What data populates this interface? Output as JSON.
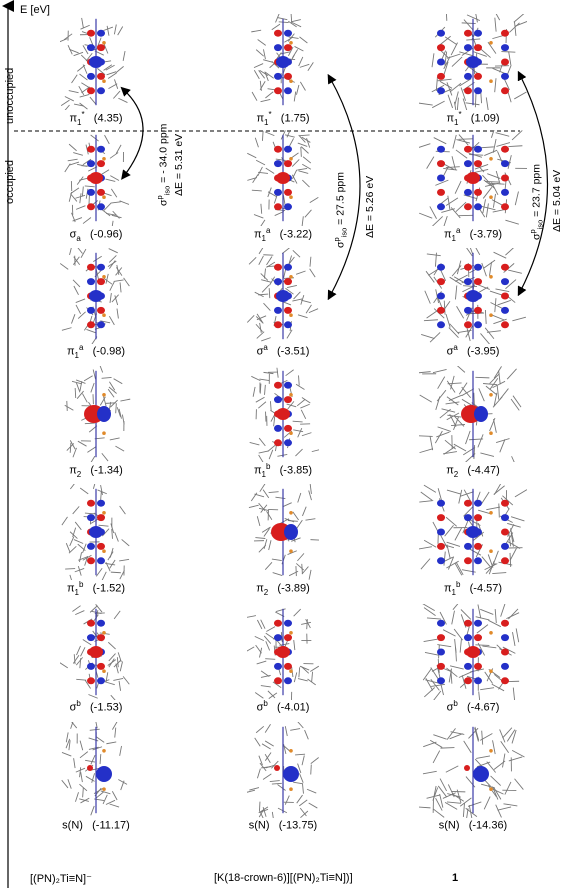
{
  "axis": {
    "label": "E [eV]"
  },
  "regions": {
    "unoccupied": "unoccupied",
    "occupied": "occupied"
  },
  "columns": [
    {
      "name": "[(PN)2Ti≡N]⁻",
      "footer": "[(PN)₂Ti≡N]⁻"
    },
    {
      "name": "[K(18-crown-6)][(PN)2Ti≡N]",
      "footer": "[K(18-crown-6)][(PN)₂Ti≡N])]"
    },
    {
      "name": "1",
      "footer": "1"
    }
  ],
  "orbitals": [
    [
      {
        "sym": "π",
        "sub": "1",
        "sup": "*",
        "energy": "(4.35)"
      },
      {
        "sym": "σ",
        "sub": "a",
        "sup": "",
        "energy": "(-0.96)"
      },
      {
        "sym": "π",
        "sub": "1",
        "sup": "a",
        "energy": "(-0.98)"
      },
      {
        "sym": "π",
        "sub": "2",
        "sup": "",
        "energy": "(-1.34)"
      },
      {
        "sym": "π",
        "sub": "1",
        "sup": "b",
        "energy": "(-1.52)"
      },
      {
        "sym": "σ",
        "sub": "",
        "sup": "b",
        "energy": "(-1.53)"
      },
      {
        "sym": "s(N)",
        "sub": "",
        "sup": "",
        "energy": "(-11.17)"
      }
    ],
    [
      {
        "sym": "π",
        "sub": "1",
        "sup": "*",
        "energy": "(1.75)"
      },
      {
        "sym": "π",
        "sub": "1",
        "sup": "a",
        "energy": "(-3.22)"
      },
      {
        "sym": "σ",
        "sub": "",
        "sup": "a",
        "energy": "(-3.51)"
      },
      {
        "sym": "π",
        "sub": "1",
        "sup": "b",
        "energy": "(-3.85)"
      },
      {
        "sym": "π",
        "sub": "2",
        "sup": "",
        "energy": "(-3.89)"
      },
      {
        "sym": "σ",
        "sub": "",
        "sup": "b",
        "energy": "(-4.01)"
      },
      {
        "sym": "s(N)",
        "sub": "",
        "sup": "",
        "energy": "(-13.75)"
      }
    ],
    [
      {
        "sym": "π",
        "sub": "1",
        "sup": "*",
        "energy": "(1.09)"
      },
      {
        "sym": "π",
        "sub": "1",
        "sup": "a",
        "energy": "(-3.79)"
      },
      {
        "sym": "σ",
        "sub": "",
        "sup": "a",
        "energy": "(-3.95)"
      },
      {
        "sym": "π",
        "sub": "2",
        "sup": "",
        "energy": "(-4.47)"
      },
      {
        "sym": "π",
        "sub": "1",
        "sup": "b",
        "energy": "(-4.57)"
      },
      {
        "sym": "σ",
        "sub": "",
        "sup": "b",
        "energy": "(-4.67)"
      },
      {
        "sym": "s(N)",
        "sub": "",
        "sup": "",
        "energy": "(-14.36)"
      }
    ]
  ],
  "transitions": [
    {
      "sigma_sym": "σ",
      "sigma_sup": "p",
      "sigma_sub": "iso",
      "sigma_value": " = - 34.0 ppm",
      "delta": "ΔE = 5.31 eV"
    },
    {
      "sigma_sym": "σ",
      "sigma_sup": "p",
      "sigma_sub": "iso",
      "sigma_value": " = 27.5 ppm",
      "delta": "ΔE = 5.26 eV"
    },
    {
      "sigma_sym": "σ",
      "sigma_sup": "p",
      "sigma_sub": "iso",
      "sigma_value": " = 23.7 ppm",
      "delta": "ΔE = 5.04 eV"
    }
  ],
  "colors": {
    "lobe_red": "#d81e1e",
    "lobe_blue": "#2430c8",
    "ligand": "#777777",
    "ti_bond": "#3a3aa8",
    "p_atom": "#e08a2a"
  }
}
